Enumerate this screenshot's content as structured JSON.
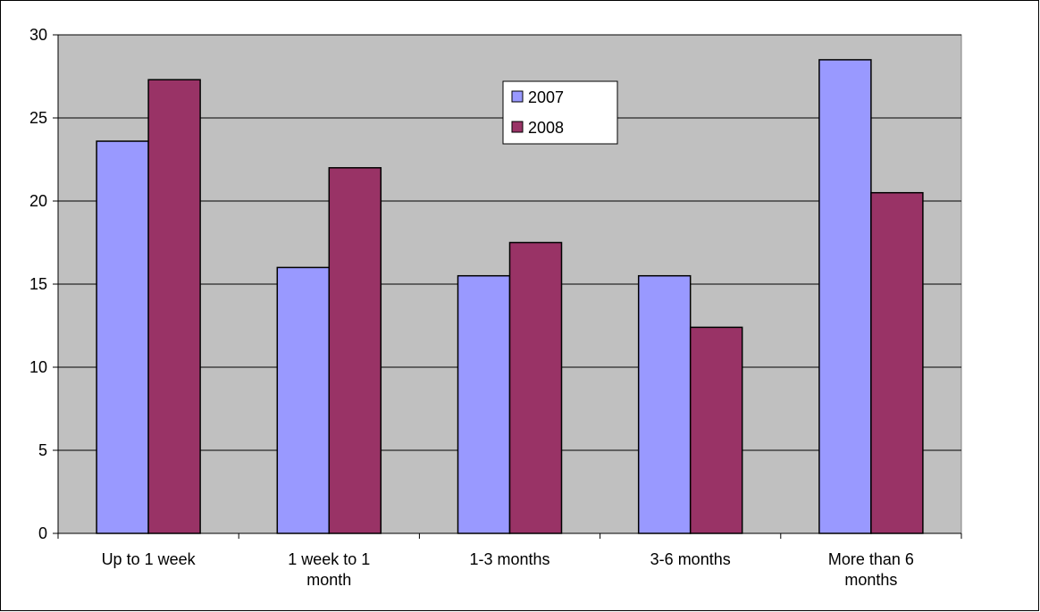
{
  "chart_data": {
    "type": "bar",
    "title": "",
    "xlabel": "",
    "ylabel": "",
    "categories": [
      "Up to 1 week",
      "1 week to 1 month",
      "1-3 months",
      "3-6 months",
      "More than 6 months"
    ],
    "category_lines": [
      [
        "Up to 1 week"
      ],
      [
        "1 week to 1",
        "month"
      ],
      [
        "1-3 months"
      ],
      [
        "3-6 months"
      ],
      [
        "More than 6",
        "months"
      ]
    ],
    "series": [
      {
        "name": "2007",
        "values": [
          23.6,
          16.0,
          15.5,
          15.5,
          28.5
        ],
        "color": "#9999ff"
      },
      {
        "name": "2008",
        "values": [
          27.3,
          22.0,
          17.5,
          12.4,
          20.5
        ],
        "color": "#993366"
      }
    ],
    "ylim": [
      0,
      30
    ],
    "yticks": [
      0,
      5,
      10,
      15,
      20,
      25,
      30
    ],
    "grid": true,
    "legend_position": "top-center",
    "plot_background": "#c0c0c0",
    "page_background": "#ffffff"
  }
}
